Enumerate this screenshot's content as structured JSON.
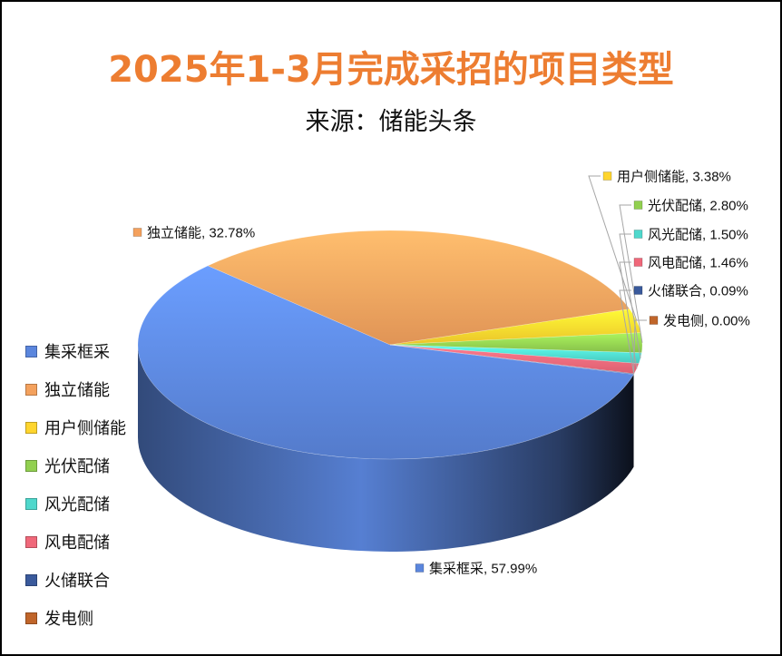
{
  "title": "2025年1-3月完成采招的项目类型",
  "subtitle": "来源：储能头条",
  "chart_data": {
    "type": "pie",
    "style": "3d",
    "title": "2025年1-3月完成采招的项目类型",
    "subtitle": "来源：储能头条",
    "legend_position": "left",
    "unit": "%",
    "slices": [
      {
        "name": "集采框采",
        "value": 57.99,
        "label": "集采框采, 57.99%",
        "color": "#5b86dd"
      },
      {
        "name": "独立储能",
        "value": 32.78,
        "label": "独立储能, 32.78%",
        "color": "#f4a15d"
      },
      {
        "name": "用户侧储能",
        "value": 3.38,
        "label": "用户侧储能, 3.38%",
        "color": "#ffd52e"
      },
      {
        "name": "光伏配储",
        "value": 2.8,
        "label": "光伏配储, 2.80%",
        "color": "#92d050"
      },
      {
        "name": "风光配储",
        "value": 1.5,
        "label": "风光配储, 1.50%",
        "color": "#4fd8cc"
      },
      {
        "name": "风电配储",
        "value": 1.46,
        "label": "风电配储, 1.46%",
        "color": "#f0687a"
      },
      {
        "name": "火储联合",
        "value": 0.09,
        "label": "火储联合, 0.09%",
        "color": "#3a5a9c"
      },
      {
        "name": "发电侧",
        "value": 0.0,
        "label": "发电侧, 0.00%",
        "color": "#c0652a"
      }
    ]
  }
}
